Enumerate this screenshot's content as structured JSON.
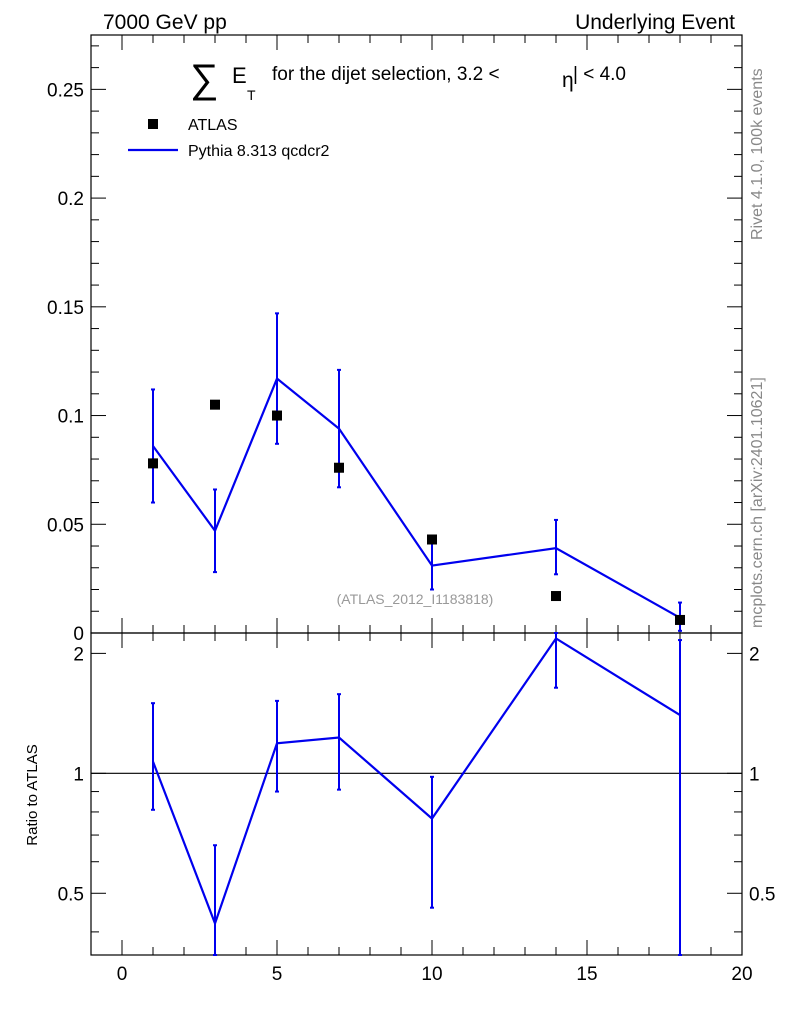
{
  "header": {
    "left": "7000 GeV pp",
    "right": "Underlying Event"
  },
  "side_labels": {
    "rivet": "Rivet 4.1.0,  100k events",
    "mcplots": "mcplots.cern.ch [arXiv:2401.10621]"
  },
  "chart_data": [
    {
      "type": "line",
      "panel": "main",
      "title_parts": {
        "sum_symbol": "∑",
        "e": "E",
        "t": "T",
        "text": "for the dijet selection, 3.2 <",
        "eta": "η",
        "end": "| < 4.0"
      },
      "watermark": "(ATLAS_2012_I1183818)",
      "xlim": [
        -1,
        20
      ],
      "ylim": [
        0,
        0.275
      ],
      "yticks": [
        {
          "value": 0,
          "label": "0"
        },
        {
          "value": 0.05,
          "label": "0.05"
        },
        {
          "value": 0.1,
          "label": "0.1"
        },
        {
          "value": 0.15,
          "label": "0.15"
        },
        {
          "value": 0.2,
          "label": "0.2"
        },
        {
          "value": 0.25,
          "label": "0.25"
        }
      ],
      "legend_position": "top-left",
      "legend": [
        {
          "name": "ATLAS",
          "style": "marker",
          "color": "#000000"
        },
        {
          "name": "Pythia 8.313 qcdcr2",
          "style": "line",
          "color": "#0000ee"
        }
      ],
      "series": [
        {
          "name": "ATLAS",
          "style": "marker",
          "color": "#000000",
          "x": [
            1,
            3,
            5,
            7,
            10,
            14,
            18
          ],
          "y": [
            0.078,
            0.105,
            0.1,
            0.076,
            0.043,
            0.017,
            0.006
          ]
        },
        {
          "name": "Pythia 8.313 qcdcr2",
          "style": "line",
          "color": "#0000ee",
          "x": [
            1,
            3,
            5,
            7,
            10,
            14,
            18
          ],
          "y": [
            0.086,
            0.047,
            0.117,
            0.094,
            0.031,
            0.039,
            0.007
          ],
          "err_low": [
            0.06,
            0.028,
            0.087,
            0.067,
            0.02,
            0.027,
            0.001
          ],
          "err_high": [
            0.112,
            0.066,
            0.147,
            0.121,
            0.042,
            0.052,
            0.014
          ]
        }
      ]
    },
    {
      "type": "line",
      "panel": "ratio",
      "ylabel": "Ratio to ATLAS",
      "xlim": [
        -1,
        20
      ],
      "ylim": [
        0.35,
        2.25
      ],
      "reference_line": 1,
      "yticks": [
        {
          "value": 0.5,
          "label": "0.5"
        },
        {
          "value": 1,
          "label": "1"
        },
        {
          "value": 2,
          "label": "2"
        }
      ],
      "xticks": [
        {
          "value": 0,
          "label": "0"
        },
        {
          "value": 5,
          "label": "5"
        },
        {
          "value": 10,
          "label": "10"
        },
        {
          "value": 15,
          "label": "15"
        },
        {
          "value": 20,
          "label": "20"
        }
      ],
      "series": [
        {
          "name": "Pythia 8.313 qcdcr2",
          "color": "#0000ee",
          "x": [
            1,
            3,
            5,
            7,
            10,
            14,
            18
          ],
          "y": [
            1.07,
            0.42,
            1.19,
            1.23,
            0.77,
            2.18,
            1.4
          ],
          "err_low": [
            0.81,
            0.26,
            0.9,
            0.91,
            0.46,
            1.64,
            0.3
          ],
          "err_high": [
            1.5,
            0.66,
            1.52,
            1.58,
            0.98,
            2.32,
            2.16
          ]
        }
      ]
    }
  ]
}
